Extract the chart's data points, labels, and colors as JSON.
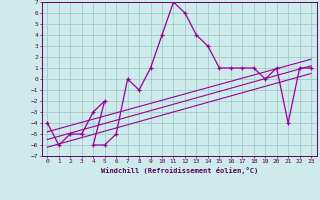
{
  "title": "",
  "xlabel": "Windchill (Refroidissement éolien,°C)",
  "background_color": "#ceeaea",
  "line_color": "#990099",
  "grid_color": "#a0cccc",
  "xlim": [
    -0.5,
    23.5
  ],
  "ylim": [
    -7,
    7
  ],
  "xticks": [
    0,
    1,
    2,
    3,
    4,
    5,
    6,
    7,
    8,
    9,
    10,
    11,
    12,
    13,
    14,
    15,
    16,
    17,
    18,
    19,
    20,
    21,
    22,
    23
  ],
  "yticks": [
    -7,
    -6,
    -5,
    -4,
    -3,
    -2,
    -1,
    0,
    1,
    2,
    3,
    4,
    5,
    6,
    7
  ],
  "data_x": [
    0,
    1,
    2,
    3,
    4,
    5,
    4,
    5,
    6,
    7,
    8,
    9,
    10,
    11,
    12,
    13,
    14,
    15,
    16,
    17,
    18,
    19,
    20,
    21,
    22,
    23
  ],
  "data_y": [
    -4,
    -6,
    -5,
    -5,
    -3,
    -2,
    -6,
    -6,
    -5,
    0,
    -1,
    1,
    4,
    7,
    6,
    4,
    3,
    1,
    1,
    1,
    1,
    0,
    1,
    -4,
    1,
    1
  ],
  "trend1_x": [
    0,
    23
  ],
  "trend1_y": [
    -6.2,
    0.5
  ],
  "trend2_x": [
    0,
    23
  ],
  "trend2_y": [
    -5.5,
    1.2
  ],
  "trend3_x": [
    0,
    23
  ],
  "trend3_y": [
    -4.8,
    1.8
  ]
}
